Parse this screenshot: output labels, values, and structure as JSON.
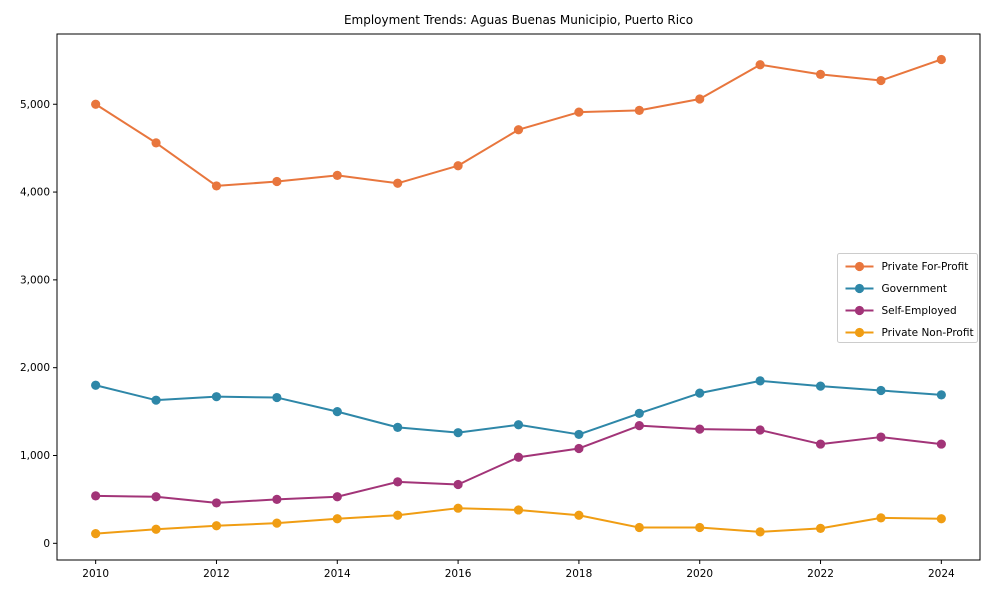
{
  "title": "Employment Trends: Aguas Buenas Municipio, Puerto Rico",
  "chart_data": {
    "type": "line",
    "title": "Employment Trends: Aguas Buenas Municipio, Puerto Rico",
    "xlabel": "",
    "ylabel": "",
    "grid": false,
    "legend_position": "center-right",
    "x": [
      2010,
      2011,
      2012,
      2013,
      2014,
      2015,
      2016,
      2017,
      2018,
      2019,
      2020,
      2021,
      2022,
      2023,
      2024
    ],
    "series": [
      {
        "name": "Private For-Profit",
        "color": "#e8763d",
        "values": [
          5000,
          4560,
          4070,
          4120,
          4190,
          4100,
          4300,
          4710,
          4910,
          4930,
          5060,
          5450,
          5340,
          5270,
          5510
        ]
      },
      {
        "name": "Government",
        "color": "#2e87a8",
        "values": [
          1800,
          1630,
          1670,
          1660,
          1500,
          1320,
          1260,
          1350,
          1240,
          1480,
          1710,
          1850,
          1790,
          1740,
          1690
        ]
      },
      {
        "name": "Self-Employed",
        "color": "#a23478",
        "values": [
          540,
          530,
          460,
          500,
          530,
          700,
          670,
          980,
          1080,
          1340,
          1300,
          1290,
          1130,
          1210,
          1130
        ]
      },
      {
        "name": "Private Non-Profit",
        "color": "#f09d13",
        "values": [
          110,
          160,
          200,
          230,
          280,
          320,
          400,
          380,
          320,
          180,
          180,
          130,
          170,
          290,
          280
        ]
      }
    ],
    "xticks": [
      2010,
      2012,
      2014,
      2016,
      2018,
      2020,
      2022,
      2024
    ],
    "yticks": [
      0,
      1000,
      2000,
      3000,
      4000,
      5000
    ],
    "ytick_labels": [
      "0",
      "1,000",
      "2,000",
      "3,000",
      "4,000",
      "5,000"
    ],
    "xlim": [
      2009.36,
      2024.64
    ],
    "ylim": [
      -190,
      5800
    ],
    "axis_color": "#000000",
    "background_color": "#ffffff"
  }
}
